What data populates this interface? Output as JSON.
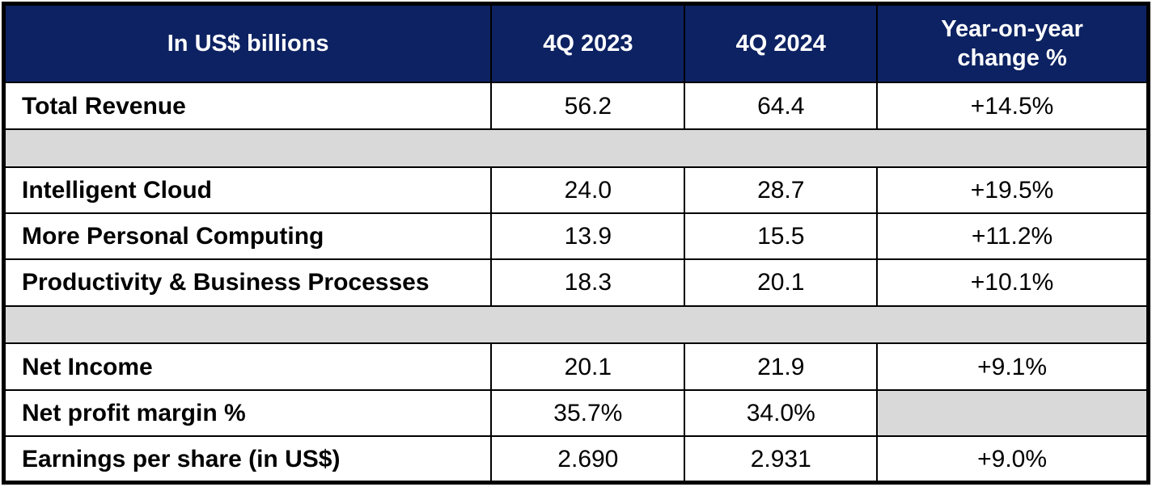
{
  "colors": {
    "header_bg": "#0d2262",
    "header_text": "#ffffff",
    "spacer_bg": "#d9d9d9",
    "border": "#000000",
    "body_text": "#000000"
  },
  "table": {
    "header": {
      "metric": "In US$ billions",
      "q4_2023": "4Q 2023",
      "q4_2024": "4Q 2024",
      "yoy": "Year-on-year\nchange %"
    },
    "rows": [
      {
        "label": "Total Revenue",
        "q4_2023": "56.2",
        "q4_2024": "64.4",
        "yoy": "+14.5%"
      },
      {
        "label": "Intelligent Cloud",
        "q4_2023": "24.0",
        "q4_2024": "28.7",
        "yoy": "+19.5%"
      },
      {
        "label": "More Personal Computing",
        "q4_2023": "13.9",
        "q4_2024": "15.5",
        "yoy": "+11.2%"
      },
      {
        "label": "Productivity & Business Processes",
        "q4_2023": "18.3",
        "q4_2024": "20.1",
        "yoy": "+10.1%"
      },
      {
        "label": "Net Income",
        "q4_2023": "20.1",
        "q4_2024": "21.9",
        "yoy": "+9.1%"
      },
      {
        "label": "Net profit margin %",
        "q4_2023": "35.7%",
        "q4_2024": "34.0%",
        "yoy": ""
      },
      {
        "label": "Earnings per share (in US$)",
        "q4_2023": "2.690",
        "q4_2024": "2.931",
        "yoy": "+9.0%"
      }
    ]
  },
  "chart_data": {
    "type": "table",
    "title": "In US$ billions",
    "columns": [
      "In US$ billions",
      "4Q 2023",
      "4Q 2024",
      "Year-on-year change %"
    ],
    "rows": [
      [
        "Total Revenue",
        "56.2",
        "64.4",
        "+14.5%"
      ],
      [
        "Intelligent Cloud",
        "24.0",
        "28.7",
        "+19.5%"
      ],
      [
        "More Personal Computing",
        "13.9",
        "15.5",
        "+11.2%"
      ],
      [
        "Productivity & Business Processes",
        "18.3",
        "20.1",
        "+10.1%"
      ],
      [
        "Net Income",
        "20.1",
        "21.9",
        "+9.1%"
      ],
      [
        "Net profit margin %",
        "35.7%",
        "34.0%",
        ""
      ],
      [
        "Earnings per share (in US$)",
        "2.690",
        "2.931",
        "+9.0%"
      ]
    ],
    "layout_hints": {
      "header_style": "navy background, white bold centered text",
      "spacer_rows_after": [
        "Total Revenue",
        "Productivity & Business Processes"
      ],
      "empty_cells": [
        [
          "Net profit margin %",
          "Year-on-year change %"
        ]
      ]
    }
  }
}
